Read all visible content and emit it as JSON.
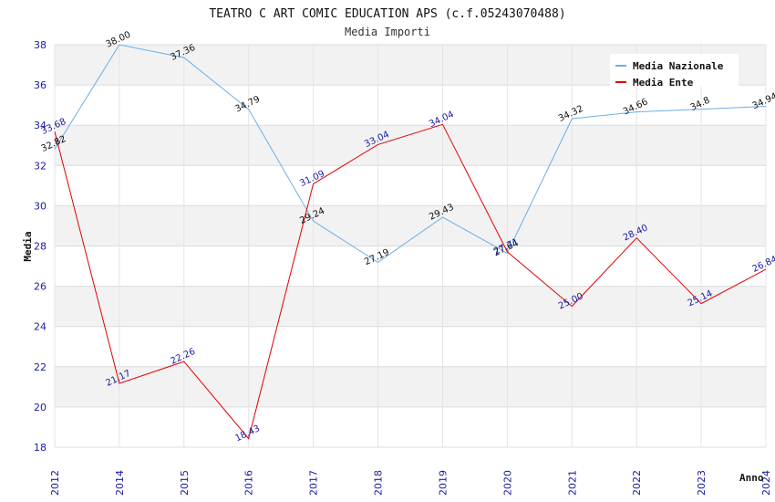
{
  "chart_data": {
    "type": "line",
    "title": "TEATRO C ART COMIC EDUCATION APS (c.f.05243070488)",
    "subtitle": "Media Importi",
    "xlabel": "Anno",
    "ylabel": "Media",
    "categories": [
      "2012",
      "2014",
      "2015",
      "2016",
      "2017",
      "2018",
      "2019",
      "2020",
      "2021",
      "2022",
      "2023",
      "2024"
    ],
    "ylim": [
      18,
      38
    ],
    "yticks": [
      18,
      20,
      22,
      24,
      26,
      28,
      30,
      32,
      34,
      36,
      38
    ],
    "grid": true,
    "legend_position": "top-right",
    "series": [
      {
        "name": "Media Nazionale",
        "color": "#6aaee8",
        "values": [
          32.82,
          38.0,
          37.36,
          34.79,
          29.24,
          27.19,
          29.43,
          27.64,
          34.32,
          34.66,
          34.8,
          34.94
        ],
        "labels": [
          "32.82",
          "38.00",
          "37.36",
          "34.79",
          "29.24",
          "27.19",
          "29.43",
          "27.64",
          "34.32",
          "34.66",
          "34.8",
          "34.94"
        ]
      },
      {
        "name": "Media Ente",
        "color": "#e00000",
        "values": [
          33.68,
          21.17,
          22.26,
          18.43,
          31.09,
          33.04,
          34.04,
          27.71,
          25.0,
          28.4,
          25.14,
          26.84
        ],
        "labels": [
          "33.68",
          "21.17",
          "22.26",
          "18.43",
          "31.09",
          "33.04",
          "34.04",
          "27.71",
          "25.00",
          "28.40",
          "25.14",
          "26.84"
        ]
      }
    ]
  }
}
